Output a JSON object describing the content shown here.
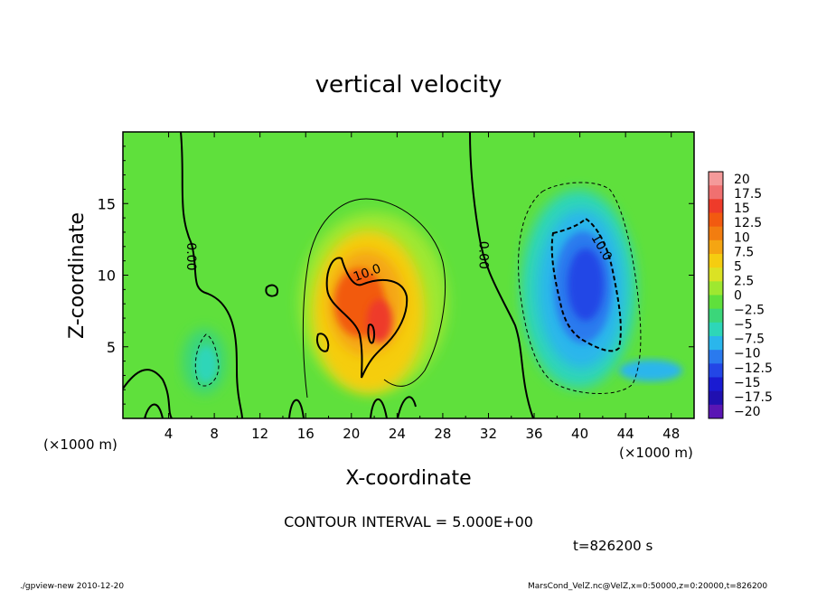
{
  "chart_data": {
    "type": "heatmap",
    "title": "vertical velocity",
    "xlabel": "X-coordinate",
    "ylabel": "Z-coordinate",
    "x_unit_label_left": "(×1000 m)",
    "x_unit_label_right": "(×1000 m)",
    "xlim": [
      0,
      50
    ],
    "ylim": [
      0,
      20
    ],
    "x_ticks": [
      4,
      8,
      12,
      16,
      20,
      24,
      28,
      32,
      36,
      40,
      44,
      48
    ],
    "y_ticks": [
      5,
      10,
      15
    ],
    "contour_interval_text": "CONTOUR INTERVAL = 5.000E+00",
    "time_text": "t=826200 s",
    "contour_labels": [
      {
        "text": "0.00",
        "x": 5.6,
        "y": 11.3
      },
      {
        "text": "10.0",
        "x": 21.5,
        "y": 9.9
      },
      {
        "text": "0.00",
        "x": 31.2,
        "y": 11.4
      },
      {
        "text": "10.0",
        "x": 41.6,
        "y": 11.8
      }
    ],
    "colorbar": {
      "labels": [
        "20",
        "17.5",
        "15",
        "12.5",
        "10",
        "7.5",
        "5",
        "2.5",
        "0",
        "−2.5",
        "−5",
        "−7.5",
        "−10",
        "−12.5",
        "−15",
        "−17.5",
        "−20"
      ],
      "colors": [
        "#f49a9a",
        "#f07070",
        "#ee3b2a",
        "#f25a10",
        "#f27d10",
        "#f5a512",
        "#f5cd10",
        "#dbe224",
        "#9ee830",
        "#5fe03c",
        "#3bd67a",
        "#2ed6b8",
        "#2ab6ec",
        "#2a7aee",
        "#2346e6",
        "#1a1bd2",
        "#2010b0",
        "#5a16b4"
      ]
    },
    "features": [
      {
        "name": "updraft",
        "x": 21.5,
        "y": 8.5,
        "peak": 14
      },
      {
        "name": "downdraft",
        "x": 40.5,
        "y": 9.0,
        "peak": -14
      },
      {
        "name": "weak downdraft",
        "x": 7.2,
        "y": 3.8,
        "peak": -5
      }
    ],
    "background_color": "#5fe03c"
  },
  "footer": {
    "left": "./gpview-new  2010-12-20",
    "right": "MarsCond_VelZ.nc@VelZ,x=0:50000,z=0:20000,t=826200"
  }
}
